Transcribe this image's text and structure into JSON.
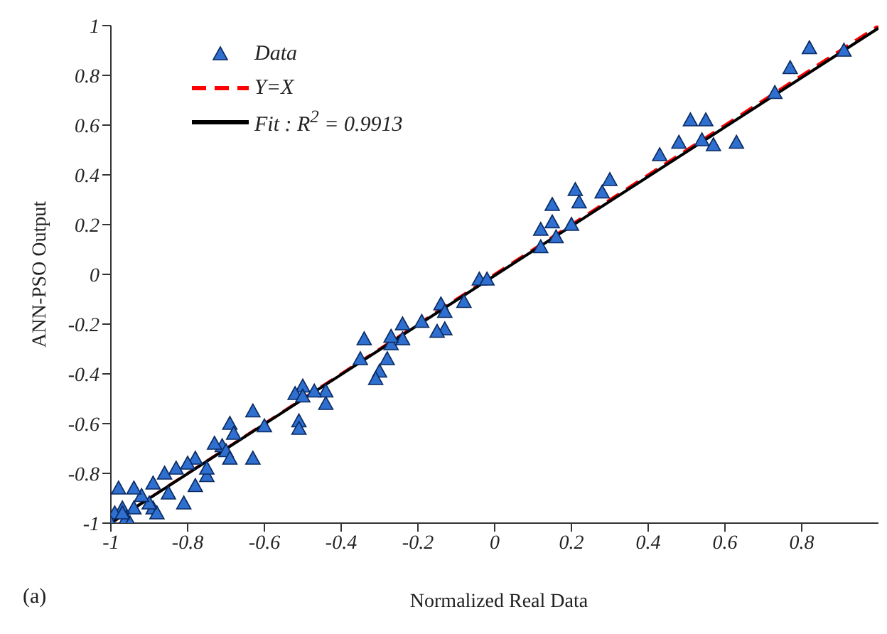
{
  "chart_data": {
    "type": "scatter",
    "xlabel": "Normalized Real Data",
    "ylabel": "ANN-PSO Output",
    "annotations": [
      "(a)"
    ],
    "xlim": [
      -1,
      1
    ],
    "ylim": [
      -1,
      1
    ],
    "xticks": [
      -1,
      -0.8,
      -0.6,
      -0.4,
      -0.2,
      0,
      0.2,
      0.4,
      0.6,
      0.8
    ],
    "yticks": [
      -1,
      -0.8,
      -0.6,
      -0.4,
      -0.2,
      0,
      0.2,
      0.4,
      0.6,
      0.8,
      1
    ],
    "grid": false,
    "legend": "top left",
    "series": [
      {
        "name": "Data",
        "marker": "triangle",
        "color": "#2e6fd0",
        "x": [
          0.82,
          0.91,
          0.77,
          0.73,
          0.51,
          0.55,
          0.54,
          0.57,
          0.63,
          0.48,
          0.43,
          0.21,
          0.3,
          0.28,
          0.22,
          0.15,
          0.15,
          0.12,
          0.2,
          0.16,
          0.12,
          -0.04,
          -0.02,
          -0.14,
          -0.13,
          -0.13,
          -0.08,
          -0.15,
          -0.19,
          -0.24,
          -0.24,
          -0.27,
          -0.27,
          -0.28,
          -0.34,
          -0.35,
          -0.3,
          -0.31,
          -0.44,
          -0.44,
          -0.47,
          -0.5,
          -0.52,
          -0.5,
          -0.51,
          -0.51,
          -0.6,
          -0.63,
          -0.63,
          -0.69,
          -0.68,
          -0.71,
          -0.7,
          -0.69,
          -0.73,
          -0.75,
          -0.75,
          -0.78,
          -0.78,
          -0.8,
          -0.81,
          -0.83,
          -0.86,
          -0.85,
          -0.89,
          -0.89,
          -0.88,
          -0.9,
          -0.92,
          -0.94,
          -0.94,
          -0.98,
          -0.97,
          -0.99,
          -0.96,
          -0.95,
          -1.0,
          -0.97
        ],
        "values": [
          0.91,
          0.9,
          0.83,
          0.73,
          0.62,
          0.62,
          0.54,
          0.52,
          0.53,
          0.53,
          0.48,
          0.34,
          0.38,
          0.33,
          0.29,
          0.28,
          0.21,
          0.18,
          0.2,
          0.15,
          0.11,
          -0.02,
          -0.02,
          -0.12,
          -0.15,
          -0.22,
          -0.11,
          -0.23,
          -0.19,
          -0.2,
          -0.26,
          -0.28,
          -0.25,
          -0.34,
          -0.26,
          -0.34,
          -0.39,
          -0.42,
          -0.52,
          -0.47,
          -0.47,
          -0.45,
          -0.48,
          -0.49,
          -0.59,
          -0.62,
          -0.61,
          -0.55,
          -0.74,
          -0.6,
          -0.64,
          -0.69,
          -0.71,
          -0.74,
          -0.68,
          -0.81,
          -0.78,
          -0.85,
          -0.74,
          -0.76,
          -0.92,
          -0.78,
          -0.8,
          -0.88,
          -0.84,
          -0.94,
          -0.96,
          -0.92,
          -0.89,
          -0.86,
          -0.94,
          -0.86,
          -0.94,
          -0.96,
          -0.98,
          -1.0,
          -1.0,
          -0.96
        ]
      },
      {
        "name": "Y=X",
        "type": "line",
        "color": "#ff0000",
        "line_style": "dashed",
        "x": [
          -1,
          1
        ],
        "values": [
          -1,
          1
        ]
      },
      {
        "name": "Fit :  R$^{2}$ = 0.9913",
        "type": "line",
        "color": "#000000",
        "line_style": "solid",
        "x": [
          -1,
          1
        ],
        "values": [
          -1,
          0.99
        ]
      }
    ]
  }
}
